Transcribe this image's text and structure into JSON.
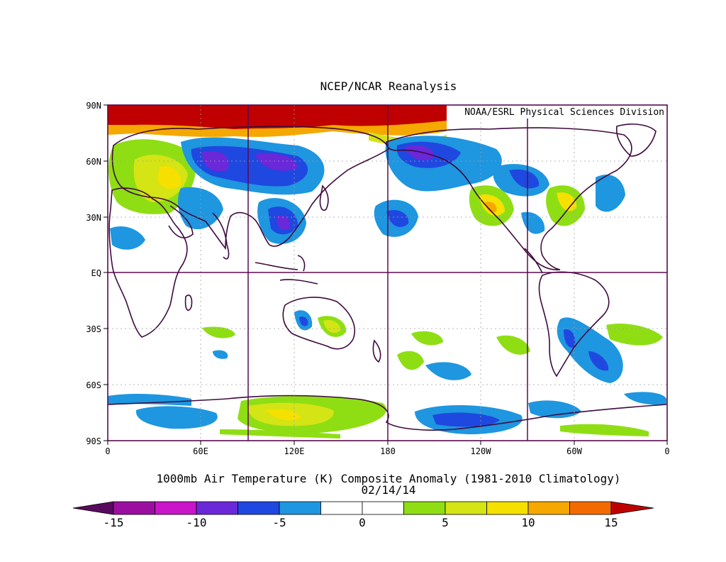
{
  "title": "NCEP/NCAR Reanalysis",
  "credit": "NOAA/ESRL Physical Sciences Division",
  "caption_line1": "1000mb Air Temperature (K) Composite Anomaly (1981-2010 Climatology)",
  "caption_line2": "02/14/14",
  "lat_labels": [
    "90N",
    "60N",
    "30N",
    "EQ",
    "30S",
    "60S",
    "90S"
  ],
  "lon_labels": [
    "0",
    "60E",
    "120E",
    "180",
    "120W",
    "60W",
    "0"
  ],
  "colorbar": {
    "tick_labels": [
      "-15",
      "-10",
      "-5",
      "0",
      "5",
      "10",
      "15"
    ],
    "under_color": "#5a0a5e",
    "over_color": "#c00000",
    "colors": [
      "#9b0fa0",
      "#c816c8",
      "#6b28d8",
      "#1f48e0",
      "#1e96e0",
      "#ffffff",
      "#ffffff",
      "#8fde14",
      "#d4e414",
      "#f5e000",
      "#f5a800",
      "#f56a00"
    ]
  },
  "colors": {
    "border": "#5a0a4e",
    "coast": "#3d0a3d",
    "grid": "#a0a0a0"
  }
}
